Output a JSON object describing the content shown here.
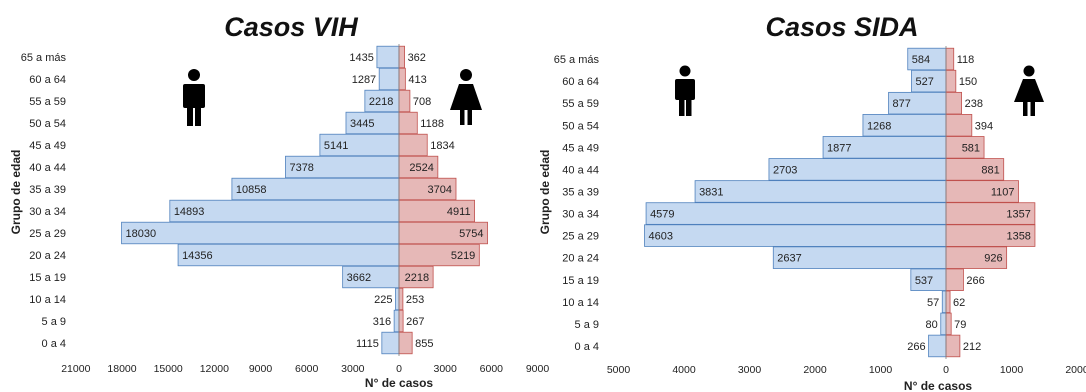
{
  "chart_data": [
    {
      "type": "bar",
      "orientation": "horizontal-population-pyramid",
      "title": "Casos VIH",
      "xlabel": "N° de casos",
      "ylabel": "Grupo de edad",
      "categories": [
        "65 a más",
        "60 a 64",
        "55 a 59",
        "50 a 54",
        "45 a 49",
        "40 a 44",
        "35 a 39",
        "30 a 34",
        "25 a 29",
        "20 a 24",
        "15 a 19",
        "10 a 14",
        "5 a 9",
        "0 a 4"
      ],
      "series": [
        {
          "name": "",
          "side": "left",
          "color": "#c5d9f1",
          "values": [
            1435,
            1287,
            2218,
            3445,
            5141,
            7378,
            10858,
            14893,
            18030,
            14356,
            3662,
            225,
            316,
            1115
          ]
        },
        {
          "name": "",
          "side": "right",
          "color": "#e6b8b7",
          "values": [
            362,
            413,
            708,
            1188,
            1834,
            2524,
            3704,
            4911,
            5754,
            5219,
            2218,
            253,
            267,
            855
          ]
        }
      ],
      "xlim_left": 21000,
      "xlim_right": 9000,
      "xticks": [
        "21000",
        "18000",
        "15000",
        "12000",
        "9000",
        "6000",
        "3000",
        "0",
        "3000",
        "6000",
        "9000"
      ],
      "grid": false
    },
    {
      "type": "bar",
      "orientation": "horizontal-population-pyramid",
      "title": "Casos SIDA",
      "xlabel": "N° de casos",
      "ylabel": "Grupo de edad",
      "categories": [
        "65 a más",
        "60 a 64",
        "55 a 59",
        "50 a 54",
        "45 a 49",
        "40 a 44",
        "35 a 39",
        "30 a 34",
        "25 a 29",
        "20 a 24",
        "15 a 19",
        "10 a 14",
        "5 a 9",
        "0 a 4"
      ],
      "series": [
        {
          "name": "",
          "side": "left",
          "color": "#c5d9f1",
          "values": [
            584,
            527,
            877,
            1268,
            1877,
            2703,
            3831,
            4579,
            4603,
            2637,
            537,
            57,
            80,
            266
          ]
        },
        {
          "name": "",
          "side": "right",
          "color": "#e6b8b7",
          "values": [
            118,
            150,
            238,
            394,
            581,
            881,
            1107,
            1357,
            1358,
            926,
            266,
            62,
            79,
            212
          ]
        }
      ],
      "xlim_left": 5000,
      "xlim_right": 2000,
      "xticks": [
        "5000",
        "4000",
        "3000",
        "2000",
        "1000",
        "0",
        "1000",
        "2000"
      ],
      "grid": false
    }
  ],
  "icons": [
    "male-figure-icon",
    "female-figure-icon"
  ]
}
